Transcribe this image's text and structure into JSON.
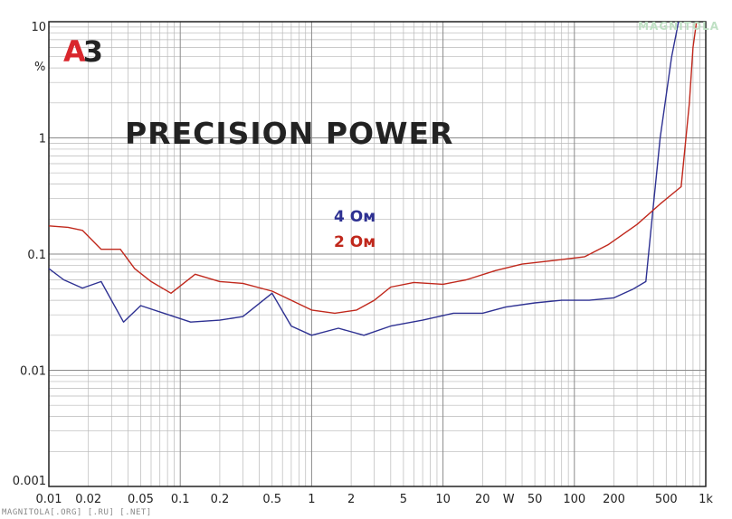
{
  "logo": {
    "a": "A",
    "three": "3"
  },
  "watermark": "MAGNITOLA",
  "footer_text": "MAGNITOLA[.ORG] [.RU] [.NET]",
  "colors": {
    "blue": "#2e3192",
    "red": "#c0281c",
    "grid": "#b8b8b8",
    "axis": "#222222"
  },
  "chart_data": {
    "type": "line",
    "title": "PRECISION POWER",
    "xlabel": "W",
    "ylabel": "%",
    "x_scale": "log",
    "y_scale": "log",
    "xlim": [
      0.01,
      1000
    ],
    "ylim": [
      0.001,
      10
    ],
    "grid": true,
    "legend": "center",
    "x_ticks": [
      {
        "value": 0.01,
        "label": "0.01"
      },
      {
        "value": 0.02,
        "label": "0.02"
      },
      {
        "value": 0.05,
        "label": "0.05"
      },
      {
        "value": 0.1,
        "label": "0.1"
      },
      {
        "value": 0.2,
        "label": "0.2"
      },
      {
        "value": 0.5,
        "label": "0.5"
      },
      {
        "value": 1,
        "label": "1"
      },
      {
        "value": 2,
        "label": "2"
      },
      {
        "value": 5,
        "label": "5"
      },
      {
        "value": 10,
        "label": "10"
      },
      {
        "value": 20,
        "label": "20"
      },
      {
        "value": 50,
        "label": "50"
      },
      {
        "value": 100,
        "label": "100"
      },
      {
        "value": 200,
        "label": "200"
      },
      {
        "value": 500,
        "label": "500"
      },
      {
        "value": 1000,
        "label": "1k"
      }
    ],
    "y_ticks": [
      {
        "value": 10,
        "label": "10"
      },
      {
        "value": 1,
        "label": "1"
      },
      {
        "value": 0.1,
        "label": "0.1"
      },
      {
        "value": 0.01,
        "label": "0.01"
      },
      {
        "value": 0.001,
        "label": "0.001"
      }
    ],
    "series": [
      {
        "name": "4 Ом",
        "color": "#2e3192",
        "points": [
          [
            0.01,
            0.075
          ],
          [
            0.013,
            0.06
          ],
          [
            0.018,
            0.051
          ],
          [
            0.025,
            0.058
          ],
          [
            0.037,
            0.026
          ],
          [
            0.05,
            0.036
          ],
          [
            0.075,
            0.031
          ],
          [
            0.12,
            0.026
          ],
          [
            0.2,
            0.027
          ],
          [
            0.3,
            0.029
          ],
          [
            0.5,
            0.046
          ],
          [
            0.7,
            0.024
          ],
          [
            1.0,
            0.02
          ],
          [
            1.6,
            0.023
          ],
          [
            2.5,
            0.02
          ],
          [
            4,
            0.024
          ],
          [
            7,
            0.027
          ],
          [
            12,
            0.031
          ],
          [
            20,
            0.031
          ],
          [
            30,
            0.035
          ],
          [
            50,
            0.038
          ],
          [
            80,
            0.04
          ],
          [
            130,
            0.04
          ],
          [
            200,
            0.042
          ],
          [
            280,
            0.05
          ],
          [
            350,
            0.058
          ],
          [
            380,
            0.15
          ],
          [
            450,
            1.0
          ],
          [
            550,
            5.0
          ],
          [
            620,
            10.0
          ]
        ]
      },
      {
        "name": "2 Ом",
        "color": "#c0281c",
        "points": [
          [
            0.01,
            0.175
          ],
          [
            0.014,
            0.17
          ],
          [
            0.018,
            0.16
          ],
          [
            0.025,
            0.11
          ],
          [
            0.035,
            0.11
          ],
          [
            0.045,
            0.075
          ],
          [
            0.06,
            0.058
          ],
          [
            0.085,
            0.046
          ],
          [
            0.13,
            0.067
          ],
          [
            0.2,
            0.058
          ],
          [
            0.3,
            0.056
          ],
          [
            0.5,
            0.048
          ],
          [
            0.7,
            0.04
          ],
          [
            1.0,
            0.033
          ],
          [
            1.5,
            0.031
          ],
          [
            2.2,
            0.033
          ],
          [
            3,
            0.04
          ],
          [
            4,
            0.052
          ],
          [
            6,
            0.057
          ],
          [
            10,
            0.055
          ],
          [
            15,
            0.06
          ],
          [
            25,
            0.072
          ],
          [
            40,
            0.082
          ],
          [
            70,
            0.088
          ],
          [
            120,
            0.095
          ],
          [
            180,
            0.12
          ],
          [
            300,
            0.18
          ],
          [
            450,
            0.27
          ],
          [
            650,
            0.38
          ],
          [
            750,
            2.0
          ],
          [
            800,
            6.0
          ],
          [
            850,
            10.0
          ]
        ]
      }
    ]
  }
}
